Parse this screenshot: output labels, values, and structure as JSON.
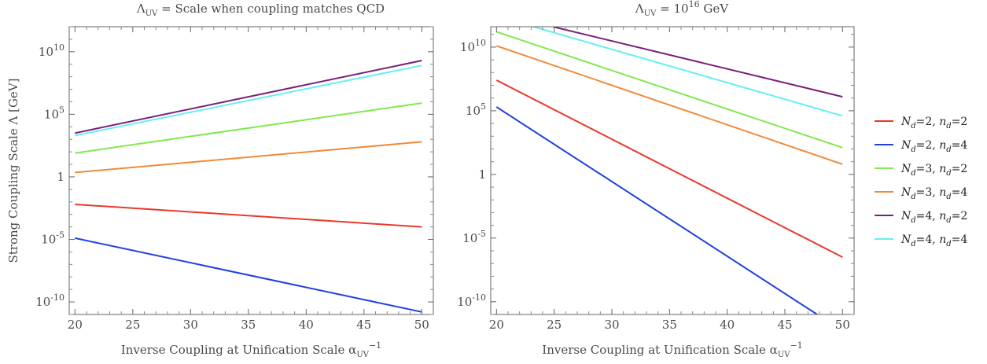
{
  "chart_data": [
    {
      "type": "line",
      "title": "Λ_UV = Scale when coupling matches QCD",
      "xlabel": "Inverse Coupling at Unification Scale  α_UV^−1",
      "ylabel": "Strong Coupling Scale  Λ [GeV]",
      "xlim": [
        19.5,
        51
      ],
      "ylim_log10": [
        -11,
        12
      ],
      "yscale": "log",
      "x_ticks": [
        20,
        25,
        30,
        35,
        40,
        45,
        50
      ],
      "y_ticks_log10": [
        -10,
        -5,
        0,
        5,
        10
      ],
      "y_tick_labels": [
        "10^-10",
        "10^-5",
        "1",
        "10^5",
        "10^10"
      ],
      "x_tick_labels": [
        "20",
        "25",
        "30",
        "35",
        "40",
        "45",
        "50"
      ],
      "series": [
        {
          "name": "N_d=2, n_d=2",
          "color": "#e8392a",
          "x": [
            20,
            50
          ],
          "log10_y": [
            -2.2,
            -4.0
          ]
        },
        {
          "name": "N_d=2, n_d=4",
          "color": "#1f3fe0",
          "x": [
            20,
            50
          ],
          "log10_y": [
            -4.9,
            -10.8
          ]
        },
        {
          "name": "N_d=3, n_d=2",
          "color": "#7eea4e",
          "x": [
            20,
            50
          ],
          "log10_y": [
            1.9,
            5.9
          ]
        },
        {
          "name": "N_d=3, n_d=4",
          "color": "#f08a3a",
          "x": [
            20,
            50
          ],
          "log10_y": [
            0.35,
            2.8
          ]
        },
        {
          "name": "N_d=4, n_d=2",
          "color": "#7a1f7a",
          "x": [
            20,
            50
          ],
          "log10_y": [
            3.5,
            9.3
          ]
        },
        {
          "name": "N_d=4, n_d=4",
          "color": "#66f0f0",
          "x": [
            20,
            50
          ],
          "log10_y": [
            3.3,
            8.9
          ]
        }
      ]
    },
    {
      "type": "line",
      "title": "Λ_UV = 10^16 GeV",
      "xlabel": "Inverse Coupling at Unification Scale  α_UV^−1",
      "ylabel": "",
      "xlim": [
        19.5,
        51
      ],
      "ylim_log10": [
        -11,
        11.6
      ],
      "yscale": "log",
      "x_ticks": [
        20,
        25,
        30,
        35,
        40,
        45,
        50
      ],
      "y_ticks_log10": [
        -10,
        -5,
        0,
        5,
        10
      ],
      "y_tick_labels": [
        "10^-10",
        "10^-5",
        "1",
        "10^5",
        "10^10"
      ],
      "x_tick_labels": [
        "20",
        "25",
        "30",
        "35",
        "40",
        "45",
        "50"
      ],
      "series": [
        {
          "name": "N_d=2, n_d=2",
          "color": "#e8392a",
          "x": [
            20,
            50
          ],
          "log10_y": [
            7.4,
            -6.5
          ]
        },
        {
          "name": "N_d=2, n_d=4",
          "color": "#1f3fe0",
          "x": [
            20,
            47.8
          ],
          "log10_y": [
            5.3,
            -11.0
          ]
        },
        {
          "name": "N_d=3, n_d=2",
          "color": "#7eea4e",
          "x": [
            20,
            50
          ],
          "log10_y": [
            11.2,
            2.1
          ]
        },
        {
          "name": "N_d=3, n_d=4",
          "color": "#f08a3a",
          "x": [
            20,
            50
          ],
          "log10_y": [
            10.1,
            0.8
          ]
        },
        {
          "name": "N_d=4, n_d=2",
          "color": "#7a1f7a",
          "x": [
            24.9,
            50
          ],
          "log10_y": [
            11.6,
            6.1
          ]
        },
        {
          "name": "N_d=4, n_d=4",
          "color": "#66f0f0",
          "x": [
            23.2,
            50
          ],
          "log10_y": [
            11.6,
            4.6
          ]
        }
      ]
    }
  ],
  "legend": {
    "placement": "right",
    "entries": [
      {
        "N": "2",
        "n": "2",
        "color": "#e8392a"
      },
      {
        "N": "2",
        "n": "4",
        "color": "#1f3fe0"
      },
      {
        "N": "3",
        "n": "2",
        "color": "#7eea4e"
      },
      {
        "N": "3",
        "n": "4",
        "color": "#f08a3a"
      },
      {
        "N": "4",
        "n": "2",
        "color": "#7a1f7a"
      },
      {
        "N": "4",
        "n": "4",
        "color": "#66f0f0"
      }
    ]
  }
}
